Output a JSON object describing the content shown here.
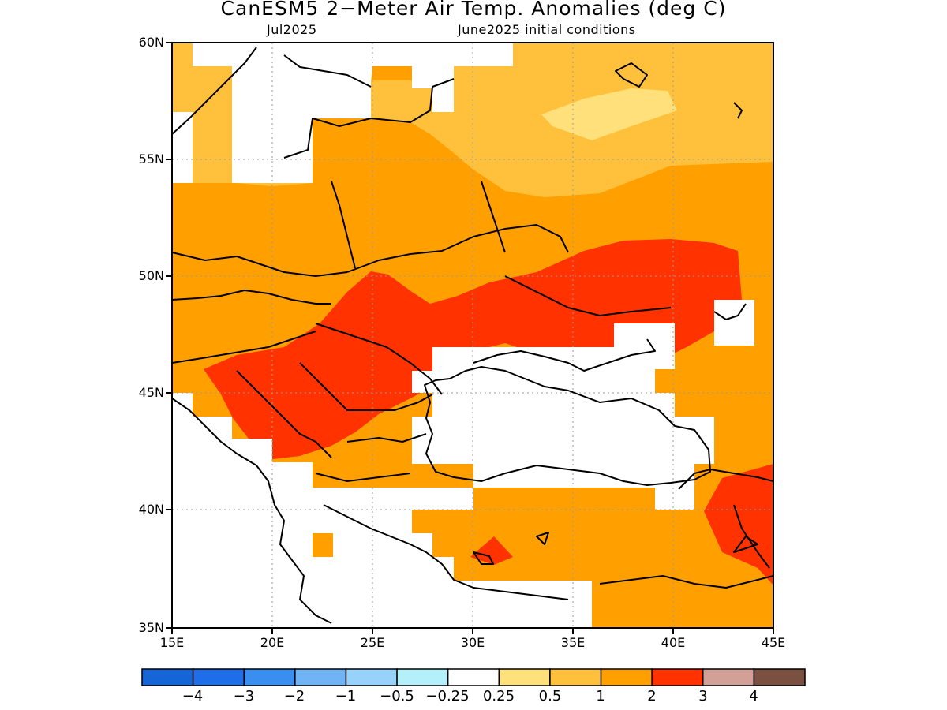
{
  "title": "CanESM5 2−Meter Air Temp. Anomalies (deg C)",
  "subtitle_left": "Jul2025",
  "subtitle_right": "June2025 initial conditions",
  "axes": {
    "lat_labels": [
      "60N",
      "55N",
      "50N",
      "45N",
      "40N",
      "35N"
    ],
    "lon_labels": [
      "15E",
      "20E",
      "25E",
      "30E",
      "35E",
      "40E",
      "45E"
    ],
    "lat_range": [
      35,
      60
    ],
    "lon_range": [
      15,
      45
    ],
    "grid": "dotted"
  },
  "colorbar": {
    "labels": [
      "−4",
      "−3",
      "−2",
      "−1",
      "−0.5",
      "−0.25",
      "0.25",
      "0.5",
      "1",
      "2",
      "3",
      "4"
    ],
    "colors": [
      "#1565d6",
      "#1f6ee8",
      "#3a8ef0",
      "#70b4f5",
      "#96d2fa",
      "#b4f0fa",
      "#ffffff",
      "#ffe07a",
      "#ffc03c",
      "#ffa000",
      "#ff3200",
      "#d2a096",
      "#7a5040"
    ]
  },
  "anomaly_colors": {
    "half_to_one": "#ffe07a",
    "one_to_two": "#ffc03c",
    "two_to_three": "#ffa000",
    "three_to_four": "#ff3200"
  }
}
